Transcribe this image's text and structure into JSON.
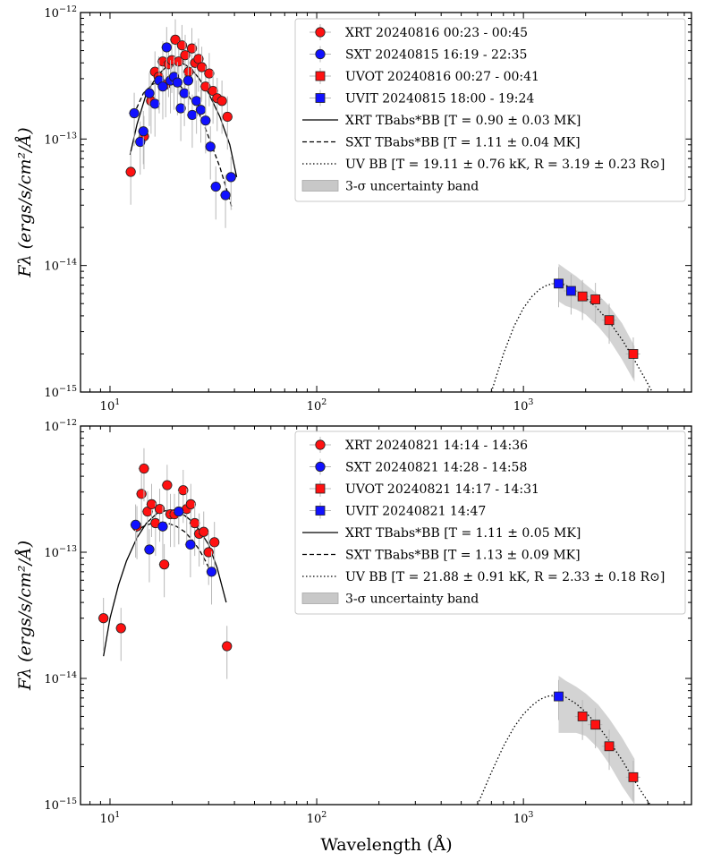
{
  "chart_data": [
    {
      "type": "scatter",
      "panel": "top",
      "xscale": "log",
      "yscale": "log",
      "xlim": [
        7.2,
        6500
      ],
      "ylim": [
        1e-15,
        1e-12
      ],
      "ylabel": "Fλ (ergs/s/cm²/Å)",
      "xticks": [
        {
          "value": 10,
          "base": "10",
          "exp": "1"
        },
        {
          "value": 100,
          "base": "10",
          "exp": "2"
        },
        {
          "value": 1000,
          "base": "10",
          "exp": "3"
        }
      ],
      "yticks": [
        {
          "value": 1e-15,
          "base": "10",
          "exp": "−15"
        },
        {
          "value": 1e-14,
          "base": "10",
          "exp": "−14"
        },
        {
          "value": 1e-13,
          "base": "10",
          "exp": "−13"
        },
        {
          "value": 1e-12,
          "base": "10",
          "exp": "−12"
        }
      ],
      "legend": {
        "position": "upper-right",
        "entries": [
          {
            "kind": "circle",
            "color": "#ff1111",
            "label": "XRT 20240816 00:23 - 00:45"
          },
          {
            "kind": "circle",
            "color": "#1111ff",
            "label": "SXT 20240815 16:19 - 22:35"
          },
          {
            "kind": "square",
            "color": "#ff1111",
            "label": "UVOT 20240816 00:27 - 00:41"
          },
          {
            "kind": "square",
            "color": "#1111ff",
            "label": "UVIT 20240815 18:00 - 19:24"
          },
          {
            "kind": "solid",
            "label": "XRT TBabs*BB [T = 0.90 ± 0.03 MK]"
          },
          {
            "kind": "dashed",
            "label": "SXT TBabs*BB [T = 1.11 ± 0.04 MK]"
          },
          {
            "kind": "dotted",
            "label": "UV BB [T = 19.11 ± 0.76  kK, R = 3.19 ± 0.23 R⊙]"
          },
          {
            "kind": "band",
            "label": "3-σ uncertainty band"
          }
        ]
      },
      "series": [
        {
          "name": "XRT 20240816 00:23 - 00:45",
          "marker": "circle",
          "color": "#ff1111",
          "x": [
            12.6,
            14.6,
            15.8,
            16.5,
            17.2,
            18.0,
            18.6,
            19.2,
            19.9,
            20.7,
            21.5,
            22.3,
            23.1,
            24.0,
            24.9,
            25.8,
            26.8,
            27.8,
            29.0,
            30.2,
            31.5,
            33.0,
            34.8,
            37.0
          ],
          "y": [
            5.5e-14,
            1.05e-13,
            2e-13,
            3.4e-13,
            3.1e-13,
            4.1e-13,
            2.7e-13,
            3.9e-13,
            4.2e-13,
            6.1e-13,
            4.1e-13,
            5.5e-13,
            4.6e-13,
            3.4e-13,
            5.2e-13,
            4e-13,
            4.3e-13,
            3.7e-13,
            2.6e-13,
            3.3e-13,
            2.4e-13,
            2.1e-13,
            2e-13,
            1.5e-13
          ]
        },
        {
          "name": "SXT 20240815 16:19 - 22:35",
          "marker": "circle",
          "color": "#1111ff",
          "x": [
            13.1,
            14.0,
            14.5,
            15.5,
            16.5,
            17.3,
            18.0,
            18.8,
            19.6,
            20.4,
            21.2,
            22.0,
            22.9,
            23.9,
            25.0,
            26.2,
            27.5,
            29.0,
            30.6,
            32.5,
            36.2,
            38.5
          ],
          "y": [
            1.6e-13,
            9.5e-14,
            1.15e-13,
            2.3e-13,
            1.9e-13,
            2.9e-13,
            2.6e-13,
            5.3e-13,
            2.9e-13,
            3.1e-13,
            2.8e-13,
            1.75e-13,
            2.3e-13,
            2.9e-13,
            1.55e-13,
            2e-13,
            1.7e-13,
            1.4e-13,
            8.7e-14,
            4.2e-14,
            3.6e-14,
            5e-14
          ]
        },
        {
          "name": "UVOT 20240816 00:27 - 00:41",
          "marker": "square",
          "color": "#ff1111",
          "x": [
            1930,
            2230,
            2600,
            3400
          ],
          "y": [
            5.7e-15,
            5.4e-15,
            3.7e-15,
            2e-15
          ]
        },
        {
          "name": "UVIT 20240815 18:00 - 19:24",
          "marker": "square",
          "color": "#1111ff",
          "x": [
            1480,
            1700
          ],
          "y": [
            7.2e-15,
            6.3e-15
          ]
        }
      ],
      "models": {
        "xrt": {
          "x": [
            12.5,
            13.5,
            15.0,
            17.0,
            19.0,
            21.0,
            23.0,
            25.0,
            27.0,
            30.0,
            34.0,
            38.0,
            41.0
          ],
          "y": [
            7.5e-14,
            1.3e-13,
            2.3e-13,
            3.2e-13,
            3.8e-13,
            4e-13,
            3.9e-13,
            3.5e-13,
            3e-13,
            2.3e-13,
            1.5e-13,
            9e-14,
            5e-14
          ]
        },
        "sxt": {
          "x": [
            13.0,
            14.5,
            16.0,
            18.0,
            20.0,
            22.0,
            24.0,
            26.0,
            28.0,
            31.0,
            34.0,
            37.0,
            39.0
          ],
          "y": [
            1.55e-13,
            2.3e-13,
            2.7e-13,
            2.9e-13,
            2.8e-13,
            2.6e-13,
            2.2e-13,
            1.8e-13,
            1.4e-13,
            9e-14,
            6e-14,
            3.8e-14,
            2.8e-14
          ]
        },
        "uv": {
          "x": [
            700,
            800,
            900,
            1000,
            1100,
            1200,
            1300,
            1400,
            1500,
            1600,
            1800,
            2000,
            2300,
            2600,
            3000,
            3400,
            3800,
            4200
          ],
          "y": [
            1e-15,
            2e-15,
            3.3e-15,
            4.6e-15,
            5.7e-15,
            6.5e-15,
            7e-15,
            7.2e-15,
            7.2e-15,
            7e-15,
            6.3e-15,
            5.6e-15,
            4.5e-15,
            3.6e-15,
            2.6e-15,
            1.85e-15,
            1.35e-15,
            1e-15
          ]
        },
        "band": {
          "x": [
            1480,
            1600,
            1800,
            2000,
            2300,
            2600,
            3000,
            3450
          ],
          "upper": [
            1.03e-14,
            9.4e-15,
            8.2e-15,
            7.1e-15,
            5.9e-15,
            4.8e-15,
            3.5e-15,
            2.3e-15
          ],
          "lower": [
            5.2e-15,
            4.8e-15,
            4.5e-15,
            4.1e-15,
            3.3e-15,
            2.6e-15,
            1.8e-15,
            1.2e-15
          ]
        }
      }
    },
    {
      "type": "scatter",
      "panel": "bottom",
      "xscale": "log",
      "yscale": "log",
      "xlim": [
        7.2,
        6500
      ],
      "ylim": [
        1e-15,
        1e-12
      ],
      "xlabel": "Wavelength (Å)",
      "ylabel": "Fλ (ergs/s/cm²/Å)",
      "xticks": [
        {
          "value": 10,
          "base": "10",
          "exp": "1"
        },
        {
          "value": 100,
          "base": "10",
          "exp": "2"
        },
        {
          "value": 1000,
          "base": "10",
          "exp": "3"
        }
      ],
      "yticks": [
        {
          "value": 1e-15,
          "base": "10",
          "exp": "−15"
        },
        {
          "value": 1e-14,
          "base": "10",
          "exp": "−14"
        },
        {
          "value": 1e-13,
          "base": "10",
          "exp": "−13"
        },
        {
          "value": 1e-12,
          "base": "10",
          "exp": "−12"
        }
      ],
      "legend": {
        "position": "upper-right",
        "entries": [
          {
            "kind": "circle",
            "color": "#ff1111",
            "label": "XRT 20240821 14:14 - 14:36"
          },
          {
            "kind": "circle",
            "color": "#1111ff",
            "label": "SXT 20240821 14:28 - 14:58"
          },
          {
            "kind": "square",
            "color": "#ff1111",
            "label": "UVOT 20240821 14:17 - 14:31"
          },
          {
            "kind": "square",
            "color": "#1111ff",
            "label": "UVIT 20240821 14:47"
          },
          {
            "kind": "solid",
            "label": "XRT TBabs*BB [T = 1.11 ± 0.05 MK]"
          },
          {
            "kind": "dashed",
            "label": "SXT TBabs*BB [T = 1.13 ± 0.09 MK]"
          },
          {
            "kind": "dotted",
            "label": "UV BB [T = 21.88 ± 0.91  kK, R = 2.33 ± 0.18 R⊙]"
          },
          {
            "kind": "band",
            "label": "3-σ uncertainty band"
          }
        ]
      },
      "series": [
        {
          "name": "XRT 20240821 14:14 - 14:36",
          "marker": "circle",
          "color": "#ff1111",
          "x": [
            9.3,
            11.3,
            13.5,
            14.2,
            14.6,
            15.2,
            15.9,
            16.6,
            17.4,
            18.3,
            18.9,
            19.6,
            20.5,
            21.5,
            22.6,
            23.5,
            24.6,
            25.7,
            27.0,
            28.4,
            30.0,
            32.0,
            36.8
          ],
          "y": [
            3e-14,
            2.5e-14,
            1.6e-13,
            2.9e-13,
            4.6e-13,
            2.1e-13,
            2.4e-13,
            1.7e-13,
            2.2e-13,
            8e-14,
            3.4e-13,
            2e-13,
            2e-13,
            2.1e-13,
            3.1e-13,
            2.2e-13,
            2.4e-13,
            1.7e-13,
            1.4e-13,
            1.45e-13,
            1e-13,
            1.2e-13,
            1.8e-14
          ]
        },
        {
          "name": "SXT 20240821 14:28 - 14:58",
          "marker": "circle",
          "color": "#1111ff",
          "x": [
            13.3,
            15.5,
            18.0,
            21.5,
            24.5,
            31.0
          ],
          "y": [
            1.65e-13,
            1.05e-13,
            1.6e-13,
            2.1e-13,
            1.15e-13,
            7e-14
          ]
        },
        {
          "name": "UVOT 20240821 14:17 - 14:31",
          "marker": "square",
          "color": "#ff1111",
          "x": [
            1930,
            2230,
            2600,
            3400
          ],
          "y": [
            5e-15,
            4.3e-15,
            2.9e-15,
            1.65e-15
          ]
        },
        {
          "name": "UVIT 20240821 14:47",
          "marker": "square",
          "color": "#1111ff",
          "x": [
            1480
          ],
          "y": [
            7.2e-15
          ]
        }
      ],
      "models": {
        "xrt": {
          "x": [
            9.3,
            10.0,
            11.0,
            12.0,
            13.5,
            15.0,
            17.0,
            19.0,
            21.0,
            23.0,
            25.0,
            27.0,
            30.0,
            33.0,
            36.5
          ],
          "y": [
            1.5e-14,
            3e-14,
            5.5e-14,
            8.5e-14,
            1.3e-13,
            1.7e-13,
            2.05e-13,
            2.15e-13,
            2.1e-13,
            1.95e-13,
            1.75e-13,
            1.5e-13,
            1.15e-13,
            7.5e-14,
            4e-14
          ]
        },
        "sxt": {
          "x": [
            13.3,
            14.5,
            16.0,
            17.5,
            19.0,
            21.0,
            23.0,
            25.0,
            27.0,
            29.0,
            31.0
          ],
          "y": [
            1.45e-13,
            1.6e-13,
            1.7e-13,
            1.75e-13,
            1.7e-13,
            1.6e-13,
            1.45e-13,
            1.25e-13,
            1.05e-13,
            8.5e-14,
            6.8e-14
          ]
        },
        "uv": {
          "x": [
            600,
            700,
            800,
            900,
            1000,
            1100,
            1200,
            1300,
            1400,
            1500,
            1600,
            1800,
            2000,
            2300,
            2600,
            3000,
            3400,
            3800,
            4100
          ],
          "y": [
            1e-15,
            1.8e-15,
            2.9e-15,
            4.1e-15,
            5.2e-15,
            6.1e-15,
            6.8e-15,
            7.2e-15,
            7.35e-15,
            7.3e-15,
            7.1e-15,
            6.3e-15,
            5.4e-15,
            4.2e-15,
            3.2e-15,
            2.25e-15,
            1.6e-15,
            1.2e-15,
            1e-15
          ]
        },
        "band": {
          "x": [
            1480,
            1600,
            1800,
            2000,
            2300,
            2600,
            3000,
            3450
          ],
          "upper": [
            1.05e-14,
            9.6e-15,
            8.6e-15,
            7.6e-15,
            6.2e-15,
            4.8e-15,
            3.4e-15,
            2.3e-15
          ],
          "lower": [
            3.7e-15,
            3.7e-15,
            3.7e-15,
            3.5e-15,
            2.8e-15,
            2.1e-15,
            1.4e-15,
            1e-15
          ]
        }
      }
    }
  ]
}
